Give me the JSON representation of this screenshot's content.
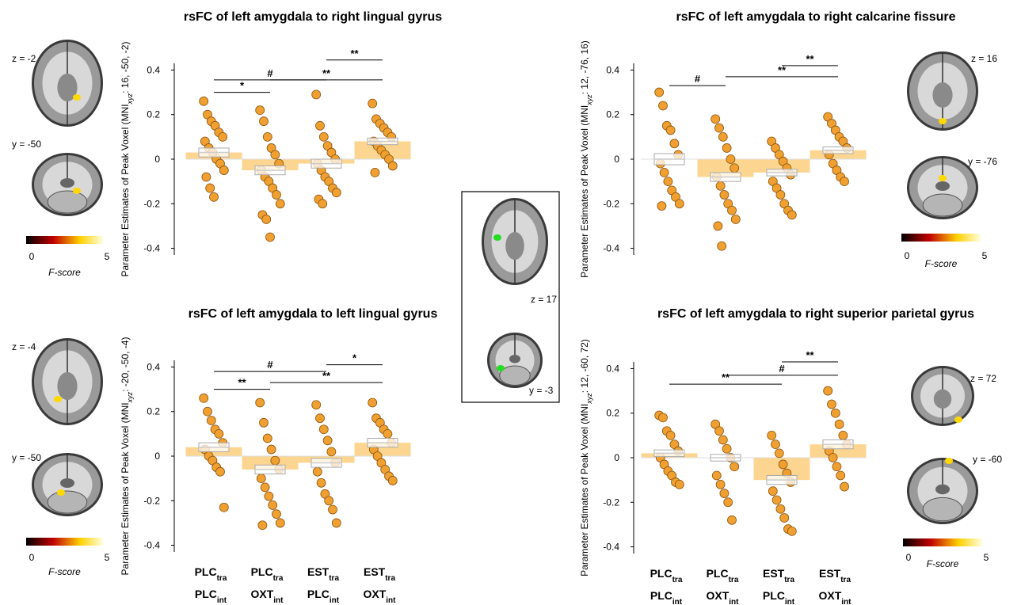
{
  "chart_data": [
    {
      "type": "bar",
      "title": "rsFC of left amygdala to right lingual gyrus",
      "ylabel": [
        "Parameter Estimates of Peak Voxel (MNI",
        "xyz",
        ": 16, -50, -2)"
      ],
      "categories": [
        null,
        null,
        null,
        null
      ],
      "means": [
        0.03,
        -0.05,
        -0.02,
        0.08
      ],
      "errors": [
        0.02,
        0.02,
        0.02,
        0.015
      ],
      "points": [
        [
          0.26,
          0.2,
          0.17,
          0.15,
          0.12,
          0.1,
          0.08,
          0.05,
          0.03,
          0.0,
          -0.02,
          -0.05,
          -0.08,
          -0.13,
          -0.17
        ],
        [
          0.22,
          0.17,
          0.1,
          0.05,
          0.02,
          -0.02,
          -0.05,
          -0.08,
          -0.1,
          -0.13,
          -0.16,
          -0.2,
          -0.25,
          -0.27,
          -0.35
        ],
        [
          0.29,
          0.15,
          0.1,
          0.06,
          0.03,
          0.0,
          -0.02,
          -0.05,
          -0.08,
          -0.1,
          -0.13,
          -0.15,
          -0.18,
          -0.2
        ],
        [
          0.25,
          0.18,
          0.16,
          0.14,
          0.12,
          0.1,
          0.08,
          0.06,
          0.04,
          0.02,
          0.0,
          -0.03,
          -0.06
        ]
      ],
      "brackets": [
        {
          "from": 0,
          "to": 2,
          "y": 0.356,
          "label": "#"
        },
        {
          "from": 2,
          "to": 3,
          "y": 0.445,
          "label": "**"
        },
        {
          "from": 0,
          "to": 1,
          "y": 0.3,
          "label": "*"
        },
        {
          "from": 1,
          "to": 3,
          "y": 0.356,
          "label": "**"
        }
      ],
      "ylim": [
        -0.43,
        0.43
      ],
      "yticks": [
        -0.4,
        -0.2,
        0,
        0.2,
        0.4
      ],
      "bar_color": "#fcd690",
      "point_color": "#f0a030",
      "slices": [
        "z = -2",
        "y = -50"
      ],
      "colorbar": {
        "ticks": [
          0,
          5
        ],
        "label": "F-score"
      }
    },
    {
      "type": "bar",
      "title": "rsFC of left amygdala to left lingual gyrus",
      "ylabel": [
        "Parameter Estimates of Peak Voxel (MNI",
        "xyz",
        ": -20, -50, -4)"
      ],
      "categories": [
        {
          "top": [
            "PLC",
            "tra"
          ],
          "bottom": [
            "PLC",
            "int"
          ]
        },
        {
          "top": [
            "PLC",
            "tra"
          ],
          "bottom": [
            "OXT",
            "int"
          ]
        },
        {
          "top": [
            "EST",
            "tra"
          ],
          "bottom": [
            "PLC",
            "int"
          ]
        },
        {
          "top": [
            "EST",
            "tra"
          ],
          "bottom": [
            "OXT",
            "int"
          ]
        }
      ],
      "means": [
        0.04,
        -0.06,
        -0.03,
        0.06
      ],
      "errors": [
        0.02,
        0.02,
        0.02,
        0.02
      ],
      "points": [
        [
          0.26,
          0.2,
          0.16,
          0.12,
          0.1,
          0.06,
          0.03,
          0.0,
          -0.02,
          -0.05,
          -0.07,
          -0.23
        ],
        [
          0.24,
          0.15,
          0.08,
          0.03,
          -0.02,
          -0.06,
          -0.1,
          -0.14,
          -0.18,
          -0.22,
          -0.26,
          -0.3,
          -0.31
        ],
        [
          0.23,
          0.17,
          0.12,
          0.07,
          0.02,
          -0.03,
          -0.07,
          -0.12,
          -0.17,
          -0.2,
          -0.24,
          -0.3
        ],
        [
          0.24,
          0.17,
          0.15,
          0.12,
          0.1,
          0.06,
          0.03,
          0.0,
          -0.03,
          -0.06,
          -0.09,
          -0.11
        ]
      ],
      "brackets": [
        {
          "from": 0,
          "to": 2,
          "y": 0.38,
          "label": "#"
        },
        {
          "from": 2,
          "to": 3,
          "y": 0.41,
          "label": "*"
        },
        {
          "from": 0,
          "to": 1,
          "y": 0.3,
          "label": "**"
        },
        {
          "from": 1,
          "to": 3,
          "y": 0.33,
          "label": "**"
        }
      ],
      "ylim": [
        -0.43,
        0.43
      ],
      "yticks": [
        -0.4,
        -0.2,
        0,
        0.2,
        0.4
      ],
      "bar_color": "#fcd690",
      "point_color": "#f0a030",
      "slices": [
        "z = -4",
        "y = -50"
      ],
      "colorbar": {
        "ticks": [
          0,
          5
        ],
        "label": "F-score"
      }
    },
    {
      "type": "bar",
      "title": "rsFC of left amygdala to right calcarine fissure",
      "ylabel": [
        "Parameter Estimates of Peak Voxel (MNI",
        "xyz",
        ": 12, -76, 16)"
      ],
      "categories": [
        null,
        null,
        null,
        null
      ],
      "means": [
        0.0,
        -0.08,
        -0.06,
        0.04
      ],
      "errors": [
        0.025,
        0.02,
        0.015,
        0.015
      ],
      "points": [
        [
          0.3,
          0.24,
          0.15,
          0.13,
          0.07,
          0.02,
          -0.02,
          -0.06,
          -0.1,
          -0.14,
          -0.17,
          -0.2,
          -0.21
        ],
        [
          0.18,
          0.14,
          0.1,
          0.05,
          0.0,
          -0.04,
          -0.08,
          -0.12,
          -0.16,
          -0.2,
          -0.23,
          -0.27,
          -0.3,
          -0.39
        ],
        [
          0.08,
          0.05,
          0.02,
          -0.01,
          -0.04,
          -0.07,
          -0.1,
          -0.13,
          -0.16,
          -0.2,
          -0.23,
          -0.25
        ],
        [
          0.19,
          0.16,
          0.13,
          0.1,
          0.08,
          0.05,
          0.02,
          -0.02,
          -0.05,
          -0.08,
          -0.1
        ]
      ],
      "brackets": [
        {
          "from": 0,
          "to": 1,
          "y": 0.33,
          "label": "#"
        },
        {
          "from": 2,
          "to": 3,
          "y": 0.42,
          "label": "**"
        },
        {
          "from": 1,
          "to": 3,
          "y": 0.37,
          "label": "**"
        }
      ],
      "ylim": [
        -0.43,
        0.43
      ],
      "yticks": [
        -0.4,
        -0.2,
        0,
        0.2,
        0.4
      ],
      "bar_color": "#fcd690",
      "point_color": "#f0a030",
      "slices": [
        "z = 16",
        "y = -76"
      ],
      "colorbar": {
        "ticks": [
          0,
          5
        ],
        "label": "F-score"
      }
    },
    {
      "type": "bar",
      "title": "rsFC of left amygdala to right superior parietal gyrus",
      "ylabel": [
        "Parameter Estimates of Peak Voxel (MNI",
        "xyz",
        ": 12, -60, 72)"
      ],
      "categories": [
        {
          "top": [
            "PLC",
            "tra"
          ],
          "bottom": [
            "PLC",
            "int"
          ]
        },
        {
          "top": [
            "PLC",
            "tra"
          ],
          "bottom": [
            "OXT",
            "int"
          ]
        },
        {
          "top": [
            "EST",
            "tra"
          ],
          "bottom": [
            "PLC",
            "int"
          ]
        },
        {
          "top": [
            "EST",
            "tra"
          ],
          "bottom": [
            "OXT",
            "int"
          ]
        }
      ],
      "means": [
        0.02,
        0.0,
        -0.1,
        0.06
      ],
      "errors": [
        0.015,
        0.015,
        0.02,
        0.02
      ],
      "points": [
        [
          0.19,
          0.18,
          0.12,
          0.1,
          0.06,
          0.03,
          0.0,
          -0.03,
          -0.06,
          -0.08,
          -0.11,
          -0.12
        ],
        [
          0.15,
          0.12,
          0.08,
          0.04,
          0.0,
          -0.04,
          -0.08,
          -0.12,
          -0.16,
          -0.2,
          -0.28
        ],
        [
          0.1,
          0.06,
          0.02,
          -0.03,
          -0.07,
          -0.11,
          -0.15,
          -0.19,
          -0.23,
          -0.27,
          -0.32,
          -0.33
        ],
        [
          0.3,
          0.24,
          0.2,
          0.15,
          0.1,
          0.06,
          0.03,
          0.0,
          -0.04,
          -0.08,
          -0.13
        ]
      ],
      "brackets": [
        {
          "from": 0,
          "to": 2,
          "y": 0.33,
          "label": "**"
        },
        {
          "from": 1,
          "to": 3,
          "y": 0.37,
          "label": "#"
        },
        {
          "from": 2,
          "to": 3,
          "y": 0.43,
          "label": "**"
        }
      ],
      "ylim": [
        -0.43,
        0.43
      ],
      "yticks": [
        -0.4,
        -0.2,
        0,
        0.2,
        0.4
      ],
      "bar_color": "#fcd690",
      "point_color": "#f0a030",
      "slices": [
        "z = 72",
        "y = -60"
      ],
      "colorbar": {
        "ticks": [
          0,
          5
        ],
        "label": "F-score"
      }
    }
  ],
  "inset": {
    "slices": [
      "z = 17",
      "y = -3"
    ]
  }
}
